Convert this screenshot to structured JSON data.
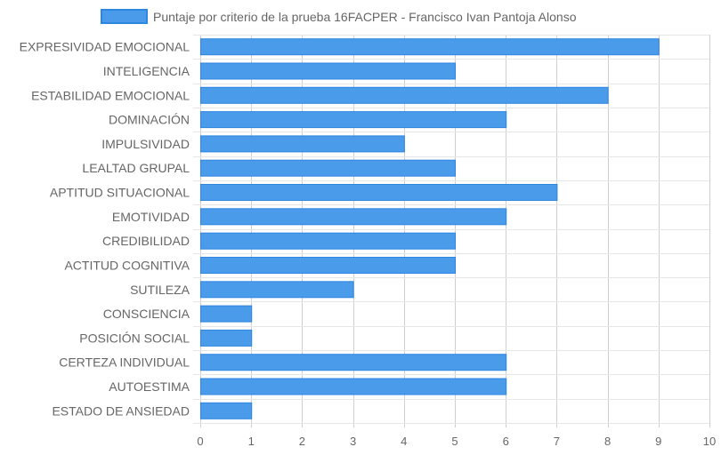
{
  "chart_data": {
    "type": "bar",
    "orientation": "horizontal",
    "categories": [
      "EXPRESIVIDAD EMOCIONAL",
      "INTELIGENCIA",
      "ESTABILIDAD EMOCIONAL",
      "DOMINACIÓN",
      "IMPULSIVIDAD",
      "LEALTAD GRUPAL",
      "APTITUD SITUACIONAL",
      "EMOTIVIDAD",
      "CREDIBILIDAD",
      "ACTITUD COGNITIVA",
      "SUTILEZA",
      "CONSCIENCIA",
      "POSICIÓN SOCIAL",
      "CERTEZA INDIVIDUAL",
      "AUTOESTIMA",
      "ESTADO DE ANSIEDAD"
    ],
    "series": [
      {
        "name": "Puntaje por criterio de la prueba 16FACPER - Francisco Ivan Pantoja Alonso",
        "values": [
          9,
          5,
          8,
          6,
          4,
          5,
          7,
          6,
          5,
          5,
          3,
          1,
          1,
          6,
          6,
          1
        ]
      }
    ],
    "xlim": [
      0,
      10
    ],
    "xticks": [
      "0",
      "1",
      "2",
      "3",
      "4",
      "5",
      "6",
      "7",
      "8",
      "9",
      "10"
    ],
    "grid": true,
    "legend_position": "top",
    "colors": {
      "bar_fill": "#4a9bea",
      "bar_border": "#2d86e0",
      "grid": "#e6e6e6",
      "text": "#666666"
    }
  }
}
